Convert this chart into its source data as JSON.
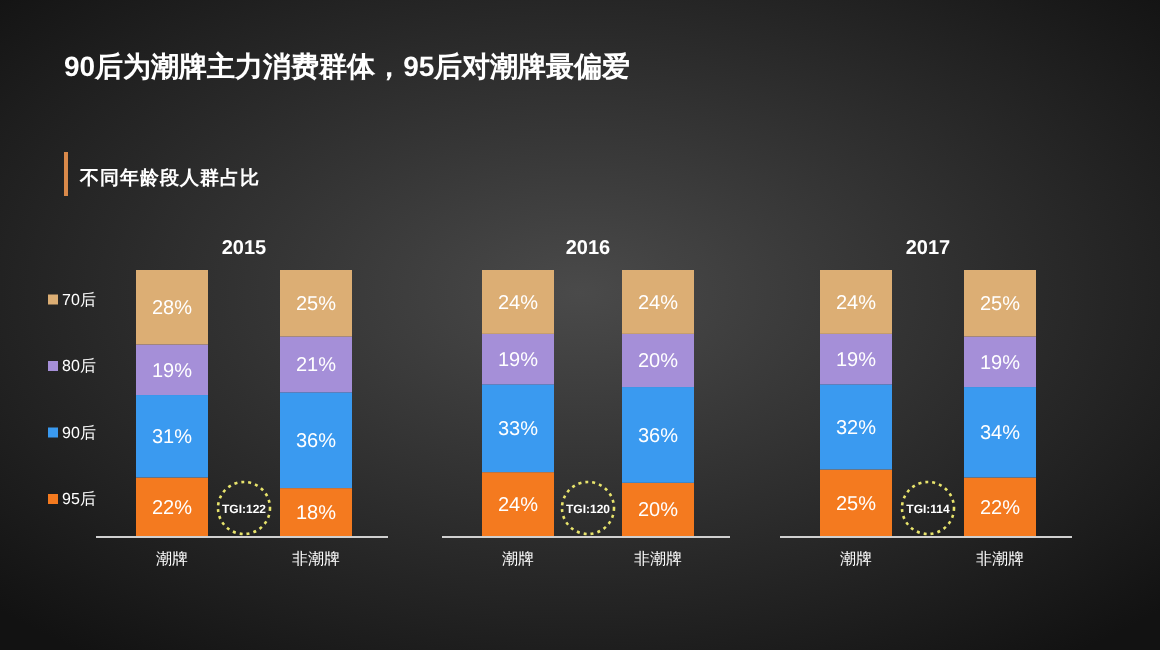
{
  "chart_data": [
    {
      "type": "other",
      "title": "90后为潮牌主力消费群体，95后对潮牌最偏爱",
      "subtitle": "不同年龄段人群占比"
    },
    {
      "type": "bar",
      "stacked": true,
      "title": "2015",
      "categories": [
        "潮牌",
        "非潮牌"
      ],
      "legend": "left",
      "annotations": [
        "TGI:122"
      ],
      "series": [
        {
          "name": "95后",
          "color": "#f47a1f",
          "values": [
            22,
            18
          ],
          "value_labels": [
            "22%",
            "18%"
          ]
        },
        {
          "name": "90后",
          "color": "#3a9af0",
          "values": [
            31,
            36
          ],
          "value_labels": [
            "31%",
            "36%"
          ]
        },
        {
          "name": "80后",
          "color": "#a58fd8",
          "values": [
            19,
            21
          ],
          "value_labels": [
            "19%",
            "21%"
          ]
        },
        {
          "name": "70后",
          "color": "#dcae74",
          "values": [
            28,
            25
          ],
          "value_labels": [
            "28%",
            "25%"
          ]
        }
      ]
    },
    {
      "type": "bar",
      "stacked": true,
      "title": "2016",
      "categories": [
        "潮牌",
        "非潮牌"
      ],
      "annotations": [
        "TGI:120"
      ],
      "series": [
        {
          "color": "#f47a1f",
          "values": [
            24,
            20
          ],
          "value_labels": [
            "24%",
            "20%"
          ]
        },
        {
          "color": "#3a9af0",
          "values": [
            33,
            36
          ],
          "value_labels": [
            "33%",
            "36%"
          ]
        },
        {
          "color": "#a58fd8",
          "values": [
            19,
            20
          ],
          "value_labels": [
            "19%",
            "20%"
          ]
        },
        {
          "color": "#dcae74",
          "values": [
            24,
            24
          ],
          "value_labels": [
            "24%",
            "24%"
          ]
        }
      ]
    },
    {
      "type": "bar",
      "stacked": true,
      "title": "2017",
      "categories": [
        "潮牌",
        "非潮牌"
      ],
      "annotations": [
        "TGI:114"
      ],
      "series": [
        {
          "color": "#f47a1f",
          "values": [
            25,
            22
          ],
          "value_labels": [
            "25%",
            "22%"
          ]
        },
        {
          "color": "#3a9af0",
          "values": [
            32,
            34
          ],
          "value_labels": [
            "32%",
            "34%"
          ]
        },
        {
          "color": "#a58fd8",
          "values": [
            19,
            19
          ],
          "value_labels": [
            "19%",
            "19%"
          ]
        },
        {
          "color": "#dcae74",
          "values": [
            24,
            25
          ],
          "value_labels": [
            "24%",
            "25%"
          ]
        }
      ]
    }
  ]
}
